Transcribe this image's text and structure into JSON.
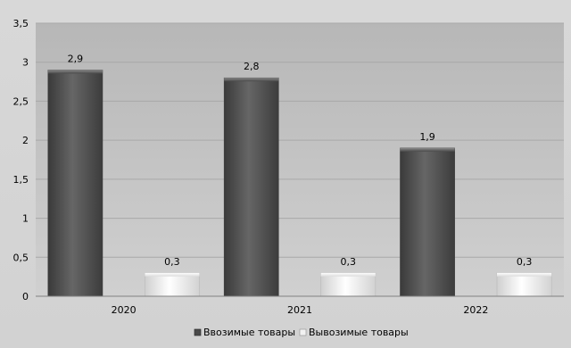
{
  "chart_data": {
    "type": "bar",
    "categories": [
      "2020",
      "2021",
      "2022"
    ],
    "series": [
      {
        "name": "Ввозимые товары",
        "values": [
          2.9,
          2.8,
          1.9
        ],
        "labels": [
          "2,9",
          "2,8",
          "1,9"
        ],
        "color": "#4f4f4f"
      },
      {
        "name": "Вывозимые товары",
        "values": [
          0.3,
          0.3,
          0.3
        ],
        "labels": [
          "0,3",
          "0,3",
          "0,3"
        ],
        "color": "#e6e6e6"
      }
    ],
    "ylim": [
      0,
      3.5
    ],
    "yticks": [
      0,
      0.5,
      1,
      1.5,
      2,
      2.5,
      3,
      3.5
    ],
    "ytick_labels": [
      "0",
      "0,5",
      "1",
      "1,5",
      "2",
      "2,5",
      "3",
      "3,5"
    ],
    "grid": true,
    "legend_position": "bottom",
    "title": "",
    "xlabel": "",
    "ylabel": ""
  }
}
